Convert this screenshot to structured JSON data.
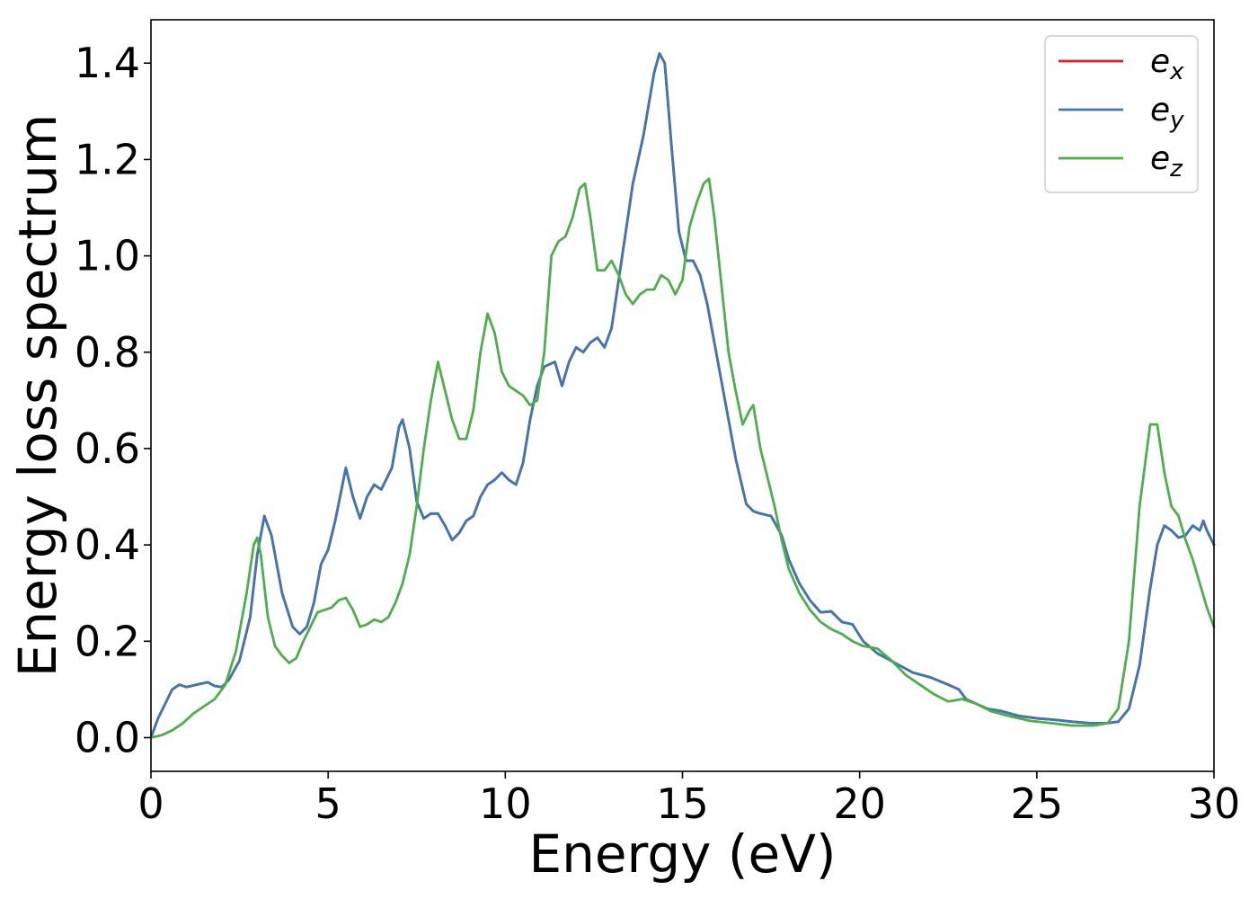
{
  "chart_data": {
    "type": "line",
    "title": "",
    "xlabel": "Energy (eV)",
    "ylabel": "Energy loss spectrum",
    "xlim": [
      0,
      30
    ],
    "ylim": [
      -0.07,
      1.49
    ],
    "xticks": [
      0,
      5,
      10,
      15,
      20,
      25,
      30
    ],
    "xtick_labels": [
      "0",
      "5",
      "10",
      "15",
      "20",
      "25",
      "30"
    ],
    "yticks": [
      0.0,
      0.2,
      0.4,
      0.6,
      0.8,
      1.0,
      1.2,
      1.4
    ],
    "ytick_labels": [
      "0.0",
      "0.2",
      "0.4",
      "0.6",
      "0.8",
      "1.0",
      "1.2",
      "1.4"
    ],
    "grid": false,
    "legend_position": "top-right",
    "series": [
      {
        "name": "e",
        "subscript": "x",
        "color": "#e41a1c",
        "x": [
          0,
          0.2,
          0.4,
          0.6,
          0.8,
          1.0,
          1.3,
          1.6,
          1.8,
          2.0,
          2.2,
          2.5,
          2.8,
          3.0,
          3.2,
          3.4,
          3.7,
          4.0,
          4.2,
          4.4,
          4.6,
          4.8,
          5.0,
          5.2,
          5.5,
          5.7,
          5.9,
          6.1,
          6.3,
          6.5,
          6.8,
          7.0,
          7.1,
          7.3,
          7.5,
          7.7,
          7.9,
          8.1,
          8.3,
          8.5,
          8.7,
          8.9,
          9.1,
          9.3,
          9.5,
          9.7,
          9.9,
          10.1,
          10.3,
          10.5,
          10.7,
          10.9,
          11.1,
          11.4,
          11.6,
          11.8,
          12.0,
          12.2,
          12.4,
          12.6,
          12.8,
          13.0,
          13.3,
          13.6,
          13.9,
          14.2,
          14.35,
          14.5,
          14.7,
          14.9,
          15.1,
          15.3,
          15.5,
          15.7,
          15.9,
          16.2,
          16.5,
          16.8,
          17.0,
          17.2,
          17.5,
          17.8,
          18.0,
          18.3,
          18.6,
          18.9,
          19.2,
          19.5,
          19.8,
          20.1,
          20.5,
          21.0,
          21.5,
          22.0,
          22.5,
          22.8,
          23.0,
          23.3,
          23.6,
          24.0,
          24.5,
          25.0,
          25.5,
          26.0,
          26.5,
          27.0,
          27.3,
          27.6,
          27.9,
          28.2,
          28.4,
          28.6,
          28.8,
          29.0,
          29.2,
          29.4,
          29.6,
          29.7,
          29.8,
          30.0
        ],
        "y": [
          0.0,
          0.04,
          0.07,
          0.1,
          0.11,
          0.105,
          0.11,
          0.115,
          0.107,
          0.105,
          0.12,
          0.16,
          0.25,
          0.38,
          0.46,
          0.42,
          0.3,
          0.23,
          0.215,
          0.23,
          0.28,
          0.36,
          0.39,
          0.45,
          0.56,
          0.5,
          0.455,
          0.5,
          0.525,
          0.515,
          0.56,
          0.645,
          0.66,
          0.6,
          0.49,
          0.455,
          0.465,
          0.465,
          0.44,
          0.41,
          0.425,
          0.45,
          0.46,
          0.5,
          0.525,
          0.535,
          0.55,
          0.535,
          0.525,
          0.57,
          0.66,
          0.73,
          0.77,
          0.78,
          0.73,
          0.78,
          0.81,
          0.8,
          0.82,
          0.83,
          0.81,
          0.85,
          1.0,
          1.15,
          1.25,
          1.38,
          1.42,
          1.4,
          1.22,
          1.05,
          0.99,
          0.99,
          0.96,
          0.9,
          0.82,
          0.7,
          0.58,
          0.485,
          0.47,
          0.465,
          0.46,
          0.42,
          0.37,
          0.32,
          0.285,
          0.26,
          0.262,
          0.24,
          0.235,
          0.2,
          0.175,
          0.155,
          0.135,
          0.125,
          0.11,
          0.1,
          0.08,
          0.07,
          0.06,
          0.055,
          0.045,
          0.04,
          0.037,
          0.033,
          0.03,
          0.03,
          0.033,
          0.06,
          0.15,
          0.31,
          0.4,
          0.44,
          0.43,
          0.415,
          0.42,
          0.44,
          0.43,
          0.45,
          0.43,
          0.4
        ]
      },
      {
        "name": "e",
        "subscript": "y",
        "color": "#3d78b5",
        "x": [
          0,
          0.2,
          0.4,
          0.6,
          0.8,
          1.0,
          1.3,
          1.6,
          1.8,
          2.0,
          2.2,
          2.5,
          2.8,
          3.0,
          3.2,
          3.4,
          3.7,
          4.0,
          4.2,
          4.4,
          4.6,
          4.8,
          5.0,
          5.2,
          5.5,
          5.7,
          5.9,
          6.1,
          6.3,
          6.5,
          6.8,
          7.0,
          7.1,
          7.3,
          7.5,
          7.7,
          7.9,
          8.1,
          8.3,
          8.5,
          8.7,
          8.9,
          9.1,
          9.3,
          9.5,
          9.7,
          9.9,
          10.1,
          10.3,
          10.5,
          10.7,
          10.9,
          11.1,
          11.4,
          11.6,
          11.8,
          12.0,
          12.2,
          12.4,
          12.6,
          12.8,
          13.0,
          13.3,
          13.6,
          13.9,
          14.2,
          14.35,
          14.5,
          14.7,
          14.9,
          15.1,
          15.3,
          15.5,
          15.7,
          15.9,
          16.2,
          16.5,
          16.8,
          17.0,
          17.2,
          17.5,
          17.8,
          18.0,
          18.3,
          18.6,
          18.9,
          19.2,
          19.5,
          19.8,
          20.1,
          20.5,
          21.0,
          21.5,
          22.0,
          22.5,
          22.8,
          23.0,
          23.3,
          23.6,
          24.0,
          24.5,
          25.0,
          25.5,
          26.0,
          26.5,
          27.0,
          27.3,
          27.6,
          27.9,
          28.2,
          28.4,
          28.6,
          28.8,
          29.0,
          29.2,
          29.4,
          29.6,
          29.7,
          29.8,
          30.0
        ],
        "y": [
          0.0,
          0.04,
          0.07,
          0.1,
          0.11,
          0.105,
          0.11,
          0.115,
          0.107,
          0.105,
          0.12,
          0.16,
          0.25,
          0.38,
          0.46,
          0.42,
          0.3,
          0.23,
          0.215,
          0.23,
          0.28,
          0.36,
          0.39,
          0.45,
          0.56,
          0.5,
          0.455,
          0.5,
          0.525,
          0.515,
          0.56,
          0.645,
          0.66,
          0.6,
          0.49,
          0.455,
          0.465,
          0.465,
          0.44,
          0.41,
          0.425,
          0.45,
          0.46,
          0.5,
          0.525,
          0.535,
          0.55,
          0.535,
          0.525,
          0.57,
          0.66,
          0.73,
          0.77,
          0.78,
          0.73,
          0.78,
          0.81,
          0.8,
          0.82,
          0.83,
          0.81,
          0.85,
          1.0,
          1.15,
          1.25,
          1.38,
          1.42,
          1.4,
          1.22,
          1.05,
          0.99,
          0.99,
          0.96,
          0.9,
          0.82,
          0.7,
          0.58,
          0.485,
          0.47,
          0.465,
          0.46,
          0.42,
          0.37,
          0.32,
          0.285,
          0.26,
          0.262,
          0.24,
          0.235,
          0.2,
          0.175,
          0.155,
          0.135,
          0.125,
          0.11,
          0.1,
          0.08,
          0.07,
          0.06,
          0.055,
          0.045,
          0.04,
          0.037,
          0.033,
          0.03,
          0.03,
          0.033,
          0.06,
          0.15,
          0.31,
          0.4,
          0.44,
          0.43,
          0.415,
          0.42,
          0.44,
          0.43,
          0.45,
          0.43,
          0.4
        ]
      },
      {
        "name": "e",
        "subscript": "z",
        "color": "#4daf4a",
        "x": [
          0,
          0.3,
          0.6,
          0.9,
          1.2,
          1.5,
          1.8,
          2.1,
          2.4,
          2.7,
          2.9,
          3.0,
          3.1,
          3.3,
          3.5,
          3.7,
          3.9,
          4.1,
          4.3,
          4.5,
          4.7,
          4.9,
          5.1,
          5.3,
          5.5,
          5.7,
          5.9,
          6.1,
          6.3,
          6.5,
          6.7,
          6.9,
          7.1,
          7.3,
          7.5,
          7.7,
          7.9,
          8.1,
          8.3,
          8.5,
          8.7,
          8.9,
          9.1,
          9.3,
          9.5,
          9.7,
          9.9,
          10.1,
          10.3,
          10.5,
          10.7,
          10.9,
          11.1,
          11.3,
          11.5,
          11.7,
          11.9,
          12.1,
          12.25,
          12.4,
          12.6,
          12.8,
          13.0,
          13.2,
          13.4,
          13.6,
          13.8,
          14.0,
          14.2,
          14.4,
          14.6,
          14.8,
          15.0,
          15.2,
          15.4,
          15.6,
          15.75,
          15.9,
          16.1,
          16.3,
          16.5,
          16.7,
          16.9,
          17.0,
          17.2,
          17.4,
          17.6,
          17.8,
          18.0,
          18.3,
          18.6,
          18.9,
          19.2,
          19.5,
          19.8,
          20.1,
          20.5,
          20.9,
          21.3,
          21.7,
          22.1,
          22.5,
          22.9,
          23.3,
          23.7,
          24.2,
          24.8,
          25.4,
          26.0,
          26.6,
          27.0,
          27.3,
          27.6,
          27.9,
          28.2,
          28.4,
          28.6,
          28.8,
          29.0,
          29.2,
          29.4,
          29.6,
          29.8,
          30.0
        ],
        "y": [
          0.0,
          0.005,
          0.015,
          0.03,
          0.05,
          0.065,
          0.08,
          0.11,
          0.18,
          0.3,
          0.4,
          0.415,
          0.38,
          0.25,
          0.19,
          0.17,
          0.155,
          0.165,
          0.2,
          0.23,
          0.26,
          0.265,
          0.27,
          0.285,
          0.29,
          0.265,
          0.23,
          0.235,
          0.245,
          0.24,
          0.25,
          0.28,
          0.32,
          0.38,
          0.48,
          0.6,
          0.7,
          0.78,
          0.72,
          0.66,
          0.62,
          0.62,
          0.68,
          0.8,
          0.88,
          0.84,
          0.76,
          0.73,
          0.72,
          0.71,
          0.69,
          0.7,
          0.8,
          1.0,
          1.03,
          1.04,
          1.08,
          1.14,
          1.15,
          1.08,
          0.97,
          0.97,
          0.99,
          0.96,
          0.92,
          0.9,
          0.92,
          0.93,
          0.93,
          0.96,
          0.95,
          0.92,
          0.95,
          1.06,
          1.11,
          1.15,
          1.16,
          1.08,
          0.94,
          0.8,
          0.72,
          0.65,
          0.68,
          0.69,
          0.6,
          0.54,
          0.48,
          0.41,
          0.35,
          0.3,
          0.265,
          0.24,
          0.225,
          0.215,
          0.2,
          0.19,
          0.185,
          0.16,
          0.13,
          0.11,
          0.09,
          0.075,
          0.08,
          0.07,
          0.055,
          0.045,
          0.035,
          0.03,
          0.025,
          0.025,
          0.03,
          0.06,
          0.2,
          0.48,
          0.65,
          0.65,
          0.55,
          0.48,
          0.46,
          0.41,
          0.37,
          0.32,
          0.27,
          0.23
        ]
      }
    ]
  }
}
